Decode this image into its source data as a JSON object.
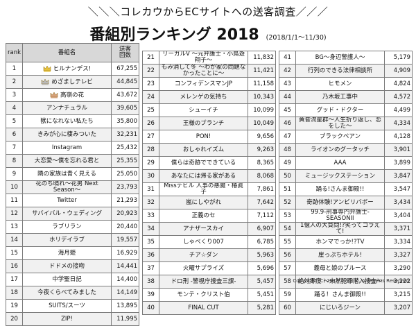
{
  "header": {
    "subtitle": "＼＼＼コレカウからECサイトへの送客調査／／／",
    "title": "番組別ランキング 2018",
    "period": "(2018/1/1～11/30)"
  },
  "table_headers": {
    "rank": "rank",
    "program": "番組名",
    "count": "送客\n回数"
  },
  "copyright": "Copyright (C) 2018 iEnt Inc. All Rights Reserved.",
  "colors": {
    "gold": "#e8c23a",
    "silver": "#b9b9b9",
    "bronze": "#d6a07a",
    "header_bg": "#d8d8d8",
    "border": "#7a7a7a"
  },
  "chart_data": {
    "type": "table",
    "title": "番組別ランキング 2018",
    "columns": [
      "rank",
      "番組名",
      "送客回数"
    ],
    "rows": [
      {
        "rank": "1",
        "name": "ヒルナンデス!",
        "value": "67,255",
        "icon": "gold-crown-icon"
      },
      {
        "rank": "2",
        "name": "めざましテレビ",
        "value": "44,845",
        "icon": "silver-crown-icon"
      },
      {
        "rank": "3",
        "name": "高嶺の花",
        "value": "43,672",
        "icon": "bronze-crown-icon"
      },
      {
        "rank": "4",
        "name": "アンナチュラル",
        "value": "39,605"
      },
      {
        "rank": "5",
        "name": "獣になれない私たち",
        "value": "35,800"
      },
      {
        "rank": "6",
        "name": "きみが心に棲みついた",
        "value": "32,231"
      },
      {
        "rank": "7",
        "name": "Instagram",
        "value": "25,432"
      },
      {
        "rank": "8",
        "name": "大恋愛～僕を忘れる君と",
        "value": "25,355"
      },
      {
        "rank": "9",
        "name": "隣の家族は青く見える",
        "value": "25,050"
      },
      {
        "rank": "10",
        "name": "花のち晴れ～花男 Next Season～",
        "value": "23,793"
      },
      {
        "rank": "11",
        "name": "Twitter",
        "value": "21,293"
      },
      {
        "rank": "12",
        "name": "サバイバル・ウェディング",
        "value": "20,923"
      },
      {
        "rank": "13",
        "name": "ラブリラン",
        "value": "20,440"
      },
      {
        "rank": "14",
        "name": "ホリデイラブ",
        "value": "19,557"
      },
      {
        "rank": "15",
        "name": "海月姫",
        "value": "16,929"
      },
      {
        "rank": "16",
        "name": "ドドメの接吻",
        "value": "14,441"
      },
      {
        "rank": "17",
        "name": "中学聖日記",
        "value": "14,400"
      },
      {
        "rank": "18",
        "name": "今夜くらべてみました",
        "value": "14,149"
      },
      {
        "rank": "19",
        "name": "SUITS/スーツ",
        "value": "13,895"
      },
      {
        "rank": "20",
        "name": "ZIP!",
        "value": "11,995"
      },
      {
        "rank": "21",
        "name": "リーガルV ～元弁護士・小鳥遊翔子～",
        "value": "11,832"
      },
      {
        "rank": "22",
        "name": "もみ消して冬 ～わが家の問題なかったことに～",
        "value": "11,421"
      },
      {
        "rank": "23",
        "name": "コンフィデンスマンJP",
        "value": "11,158"
      },
      {
        "rank": "24",
        "name": "メレンゲの気持ち",
        "value": "10,343"
      },
      {
        "rank": "25",
        "name": "シューイチ",
        "value": "10,099"
      },
      {
        "rank": "26",
        "name": "王様のブランチ",
        "value": "10,049"
      },
      {
        "rank": "27",
        "name": "PON!",
        "value": "9,656"
      },
      {
        "rank": "28",
        "name": "おしゃれイズム",
        "value": "9,263"
      },
      {
        "rank": "29",
        "name": "僕らは奇跡でできている",
        "value": "8,365"
      },
      {
        "rank": "30",
        "name": "あなたには帰る家がある",
        "value": "8,068"
      },
      {
        "rank": "31",
        "name": "Missデビル 人事の悪魔・椿眞子",
        "value": "7,861"
      },
      {
        "rank": "32",
        "name": "嵐にしやがれ",
        "value": "7,642"
      },
      {
        "rank": "33",
        "name": "正義のセ",
        "value": "7,112"
      },
      {
        "rank": "34",
        "name": "アナザースカイ",
        "value": "6,907"
      },
      {
        "rank": "35",
        "name": "しゃべくり007",
        "value": "6,785"
      },
      {
        "rank": "36",
        "name": "チア☆ダン",
        "value": "5,963"
      },
      {
        "rank": "37",
        "name": "火曜サプライズ",
        "value": "5,696"
      },
      {
        "rank": "38",
        "name": "ドロ刑 -警視庁捜査三課-",
        "value": "5,457"
      },
      {
        "rank": "39",
        "name": "モンテ・クリスト伯",
        "value": "5,451"
      },
      {
        "rank": "40",
        "name": "FINAL CUT",
        "value": "5,281"
      },
      {
        "rank": "41",
        "name": "BG～身辺警護人～",
        "value": "5,179"
      },
      {
        "rank": "42",
        "name": "行列のできる法律相談所",
        "value": "4,909"
      },
      {
        "rank": "43",
        "name": "ヒモメン",
        "value": "4,824"
      },
      {
        "rank": "44",
        "name": "乃木坂工事中",
        "value": "4,572"
      },
      {
        "rank": "45",
        "name": "グッド・ドクター",
        "value": "4,499"
      },
      {
        "rank": "46",
        "name": "黄昏流星群～人生折り返し、恋をした～",
        "value": "4,334"
      },
      {
        "rank": "47",
        "name": "ブラックペアン",
        "value": "4,128"
      },
      {
        "rank": "48",
        "name": "ライオンのグータッチ",
        "value": "3,901"
      },
      {
        "rank": "49",
        "name": "AAA",
        "value": "3,899"
      },
      {
        "rank": "50",
        "name": "ミュージックステーション",
        "value": "3,847"
      },
      {
        "rank": "51",
        "name": "踊る!さんま御殿!!",
        "value": "3,547"
      },
      {
        "rank": "52",
        "name": "奇跡体験!アンビリバボー",
        "value": "3,434"
      },
      {
        "rank": "53",
        "name": "99.9-刑事専門弁護士-SEASONII",
        "value": "3,404"
      },
      {
        "rank": "54",
        "name": "1億人の大質問!?笑ってコラえて!",
        "value": "3,371"
      },
      {
        "rank": "55",
        "name": "ホンマでっか!?TV",
        "value": "3,334"
      },
      {
        "rank": "56",
        "name": "崖っぷちホテル!",
        "value": "3,327"
      },
      {
        "rank": "57",
        "name": "義母と娘のブルース",
        "value": "3,290"
      },
      {
        "rank": "58",
        "name": "絶対零度 ～未然犯罪潜入捜査～",
        "value": "3,222"
      },
      {
        "rank": "59",
        "name": "踊る！さんま御殿!!",
        "value": "3,215"
      },
      {
        "rank": "60",
        "name": "にじいろジーン",
        "value": "3,207"
      }
    ]
  }
}
